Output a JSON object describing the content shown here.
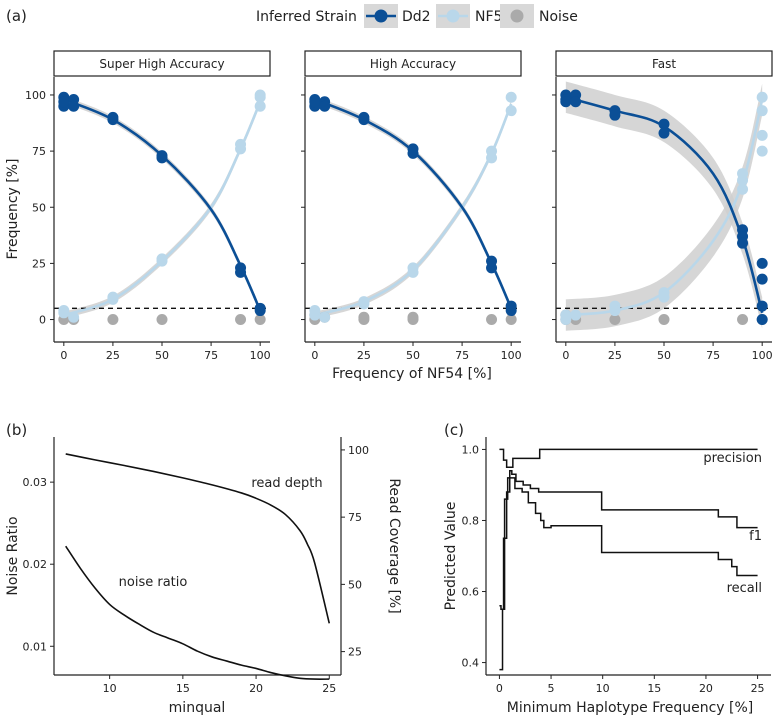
{
  "colors": {
    "dd2": "#0b4f96",
    "nf54": "#b9d7ea",
    "noise": "#aaaaaa",
    "ribbon": "#cfcfcf",
    "axis": "#222222"
  },
  "legend": {
    "title": "Inferred Strain",
    "items": [
      "Dd2",
      "NF54",
      "Noise"
    ]
  },
  "panel_labels": {
    "a": "(a)",
    "b": "(b)",
    "c": "(c)"
  },
  "chart_data": [
    {
      "id": "a",
      "type": "scatter",
      "facets": [
        "Super High Accuracy",
        "High Accuracy",
        "Fast"
      ],
      "xlabel": "Frequency of NF54 [%]",
      "ylabel": "Frequency [%]",
      "xlim": [
        -5,
        105
      ],
      "ylim": [
        -10,
        108
      ],
      "xticks": [
        0,
        25,
        50,
        75,
        100
      ],
      "yticks": [
        0,
        25,
        50,
        75,
        100
      ],
      "hline": 5,
      "x": [
        0,
        5,
        25,
        50,
        90,
        100
      ],
      "series_by_facet": [
        {
          "Dd2_points": [
            [
              0,
              99
            ],
            [
              0,
              95
            ],
            [
              0,
              97
            ],
            [
              5,
              98
            ],
            [
              5,
              95
            ],
            [
              25,
              89
            ],
            [
              25,
              90
            ],
            [
              50,
              72
            ],
            [
              50,
              73
            ],
            [
              90,
              21
            ],
            [
              90,
              23
            ],
            [
              100,
              5
            ],
            [
              100,
              4
            ]
          ],
          "NF54_points": [
            [
              0,
              3
            ],
            [
              0,
              4
            ],
            [
              5,
              1
            ],
            [
              25,
              10
            ],
            [
              25,
              9
            ],
            [
              50,
              26
            ],
            [
              50,
              27
            ],
            [
              90,
              76
            ],
            [
              90,
              78
            ],
            [
              100,
              95
            ],
            [
              100,
              99
            ],
            [
              100,
              100
            ]
          ],
          "Noise_points": [
            [
              0,
              0
            ],
            [
              5,
              0
            ],
            [
              25,
              0
            ],
            [
              50,
              0
            ],
            [
              90,
              0
            ],
            [
              100,
              0
            ]
          ],
          "Dd2_fit": [
            [
              0,
              98
            ],
            [
              25,
              89
            ],
            [
              50,
              73
            ],
            [
              75,
              49
            ],
            [
              90,
              24
            ],
            [
              100,
              4
            ]
          ],
          "NF54_fit": [
            [
              0,
              2
            ],
            [
              25,
              9
            ],
            [
              50,
              26
            ],
            [
              75,
              50
            ],
            [
              90,
              76
            ],
            [
              100,
              97
            ]
          ],
          "band": 1.5
        },
        {
          "Dd2_points": [
            [
              0,
              98
            ],
            [
              0,
              95
            ],
            [
              0,
              97
            ],
            [
              5,
              97
            ],
            [
              5,
              95
            ],
            [
              25,
              89
            ],
            [
              25,
              90
            ],
            [
              50,
              74
            ],
            [
              50,
              76
            ],
            [
              90,
              23
            ],
            [
              90,
              26
            ],
            [
              100,
              6
            ],
            [
              100,
              4
            ]
          ],
          "NF54_points": [
            [
              0,
              2
            ],
            [
              0,
              4
            ],
            [
              5,
              1
            ],
            [
              25,
              8
            ],
            [
              25,
              7
            ],
            [
              50,
              21
            ],
            [
              50,
              23
            ],
            [
              90,
              72
            ],
            [
              90,
              75
            ],
            [
              100,
              93
            ],
            [
              100,
              99
            ]
          ],
          "Noise_points": [
            [
              0,
              0
            ],
            [
              0,
              2
            ],
            [
              5,
              1
            ],
            [
              25,
              0
            ],
            [
              25,
              1
            ],
            [
              50,
              0
            ],
            [
              50,
              1
            ],
            [
              90,
              0
            ],
            [
              100,
              0
            ]
          ],
          "Dd2_fit": [
            [
              0,
              98
            ],
            [
              25,
              89
            ],
            [
              50,
              75
            ],
            [
              75,
              50
            ],
            [
              90,
              25
            ],
            [
              100,
              5
            ]
          ],
          "NF54_fit": [
            [
              0,
              2
            ],
            [
              25,
              8
            ],
            [
              50,
              22
            ],
            [
              75,
              50
            ],
            [
              90,
              74
            ],
            [
              100,
              96
            ]
          ],
          "band": 1.5
        },
        {
          "Dd2_points": [
            [
              0,
              100
            ],
            [
              0,
              98
            ],
            [
              0,
              97
            ],
            [
              5,
              100
            ],
            [
              5,
              97
            ],
            [
              25,
              93
            ],
            [
              25,
              91
            ],
            [
              50,
              87
            ],
            [
              50,
              83
            ],
            [
              90,
              40
            ],
            [
              90,
              37
            ],
            [
              90,
              34
            ],
            [
              100,
              25
            ],
            [
              100,
              18
            ],
            [
              100,
              6
            ],
            [
              100,
              0
            ]
          ],
          "NF54_points": [
            [
              0,
              0
            ],
            [
              0,
              2
            ],
            [
              5,
              2
            ],
            [
              25,
              6
            ],
            [
              25,
              4
            ],
            [
              50,
              12
            ],
            [
              50,
              10
            ],
            [
              90,
              62
            ],
            [
              90,
              65
            ],
            [
              90,
              58
            ],
            [
              100,
              99
            ],
            [
              100,
              93
            ],
            [
              100,
              82
            ],
            [
              100,
              75
            ]
          ],
          "Noise_points": [
            [
              0,
              0
            ],
            [
              0,
              2
            ],
            [
              5,
              0
            ],
            [
              25,
              0
            ],
            [
              50,
              0
            ],
            [
              90,
              0
            ],
            [
              100,
              0
            ]
          ],
          "Dd2_fit": [
            [
              0,
              99
            ],
            [
              25,
              93
            ],
            [
              50,
              86
            ],
            [
              75,
              65
            ],
            [
              90,
              36
            ],
            [
              100,
              3
            ]
          ],
          "NF54_fit": [
            [
              0,
              2
            ],
            [
              25,
              4
            ],
            [
              50,
              12
            ],
            [
              75,
              35
            ],
            [
              90,
              61
            ],
            [
              100,
              98
            ]
          ],
          "band": 7
        }
      ]
    },
    {
      "id": "b",
      "type": "line",
      "xlabel": "minqual",
      "ylabel": "Noise Ratio",
      "ylabel_right": "Read Coverage [%]",
      "xlim": [
        6.2,
        25.8
      ],
      "ylim": [
        0.0065,
        0.0355
      ],
      "ylim_right": [
        16.3,
        104.8
      ],
      "xticks": [
        10,
        15,
        20,
        25
      ],
      "yticks": [
        0.01,
        0.02,
        0.03
      ],
      "yticks_right": [
        25,
        50,
        75,
        100
      ],
      "ytick_labels": [
        "0.01",
        "0.02",
        "0.03"
      ],
      "series": [
        {
          "name": "noise ratio",
          "x": [
            7,
            8,
            9,
            10,
            11,
            12,
            13,
            14,
            15,
            16,
            17,
            18,
            19,
            20,
            21,
            22,
            23,
            24,
            25
          ],
          "values": [
            0.0222,
            0.0195,
            0.0171,
            0.0151,
            0.0138,
            0.0127,
            0.0117,
            0.011,
            0.0103,
            0.0094,
            0.0087,
            0.0082,
            0.0077,
            0.0073,
            0.0068,
            0.0064,
            0.0061,
            0.006,
            0.006
          ]
        },
        {
          "name": "read depth",
          "axis": "right",
          "x": [
            7,
            9,
            11,
            13,
            15,
            17,
            19,
            20,
            21,
            22,
            23,
            23.5,
            24,
            25
          ],
          "values": [
            98.5,
            96.3,
            94.2,
            92.0,
            89.6,
            87.0,
            84.0,
            82.0,
            79.5,
            76.0,
            70.0,
            65.0,
            58.0,
            35.5
          ]
        }
      ],
      "annotations": [
        "noise ratio",
        "read depth"
      ]
    },
    {
      "id": "c",
      "type": "line",
      "xlabel": "Minimum Haplotype Frequency [%]",
      "ylabel": "Predicted Value",
      "xlim": [
        -1.3,
        26.3
      ],
      "ylim": [
        0.365,
        1.035
      ],
      "xticks": [
        0,
        5,
        10,
        15,
        20,
        25
      ],
      "yticks": [
        0.4,
        0.6,
        0.8,
        1.0
      ],
      "ytick_labels": [
        "0.4",
        "0.6",
        "0.8",
        "1.0"
      ],
      "series": [
        {
          "name": "precision",
          "steps": [
            [
              0,
              1.0
            ],
            [
              0.4,
              0.97
            ],
            [
              0.7,
              0.95
            ],
            [
              1.3,
              0.975
            ],
            [
              3.7,
              0.975
            ],
            [
              3.9,
              1.0
            ],
            [
              25,
              1.0
            ]
          ]
        },
        {
          "name": "f1",
          "steps": [
            [
              0,
              0.56
            ],
            [
              0.15,
              0.55
            ],
            [
              0.4,
              0.75
            ],
            [
              0.7,
              0.88
            ],
            [
              1.0,
              0.94
            ],
            [
              1.2,
              0.93
            ],
            [
              1.6,
              0.91
            ],
            [
              2.3,
              0.9
            ],
            [
              3.0,
              0.89
            ],
            [
              3.8,
              0.88
            ],
            [
              5,
              0.88
            ],
            [
              9.7,
              0.88
            ],
            [
              9.9,
              0.83
            ],
            [
              20.8,
              0.83
            ],
            [
              21.2,
              0.81
            ],
            [
              22.5,
              0.81
            ],
            [
              23,
              0.78
            ],
            [
              25,
              0.78
            ]
          ]
        },
        {
          "name": "recall",
          "steps": [
            [
              0,
              0.38
            ],
            [
              0.3,
              0.55
            ],
            [
              0.5,
              0.86
            ],
            [
              0.8,
              0.92
            ],
            [
              1.1,
              0.92
            ],
            [
              1.5,
              0.89
            ],
            [
              2.2,
              0.88
            ],
            [
              2.8,
              0.85
            ],
            [
              3.5,
              0.82
            ],
            [
              4.0,
              0.8
            ],
            [
              4.3,
              0.78
            ],
            [
              5,
              0.785
            ],
            [
              9.7,
              0.785
            ],
            [
              9.9,
              0.71
            ],
            [
              20.8,
              0.71
            ],
            [
              21.2,
              0.69
            ],
            [
              22.5,
              0.67
            ],
            [
              23,
              0.645
            ],
            [
              25,
              0.645
            ]
          ]
        }
      ],
      "annotations": [
        "precision",
        "f1",
        "recall"
      ]
    }
  ]
}
